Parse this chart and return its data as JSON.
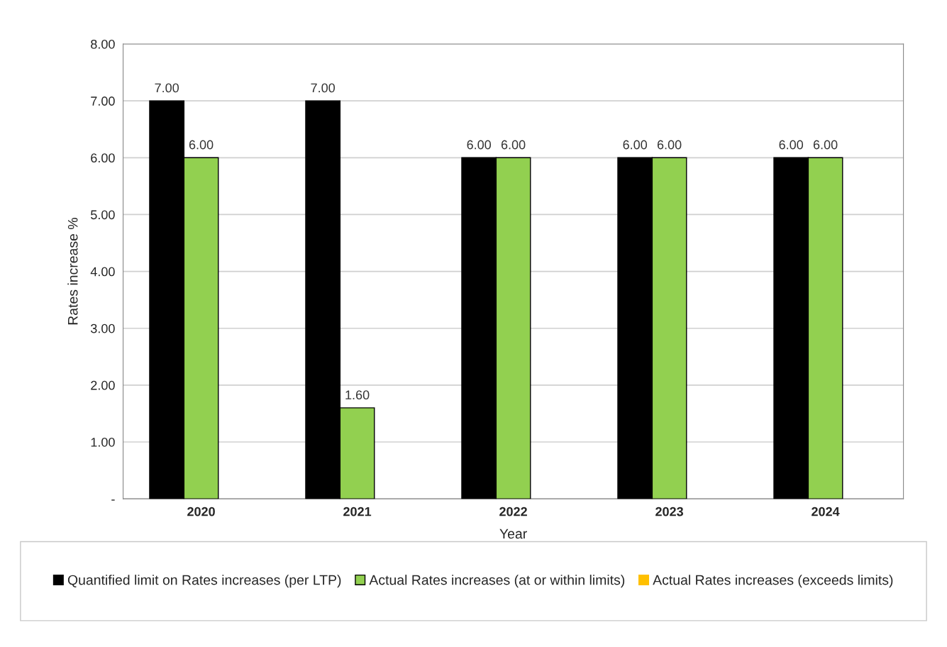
{
  "chart_data": {
    "type": "bar",
    "xlabel": "Year",
    "ylabel": "Rates increase %",
    "categories": [
      "2020",
      "2021",
      "2022",
      "2023",
      "2024"
    ],
    "series": [
      {
        "name": "Quantified limit on Rates increases (per LTP)",
        "color": "#000000",
        "values": [
          7,
          7,
          6,
          6,
          6
        ],
        "value_labels": [
          "7.00",
          "7.00",
          "6.00",
          "6.00",
          "6.00"
        ]
      },
      {
        "name": "Actual Rates increases (at or within limits)",
        "color": "#92d050",
        "values": [
          6,
          1.6,
          6,
          6,
          6
        ],
        "value_labels": [
          "6.00",
          "1.60",
          "6.00",
          "6.00",
          "6.00"
        ]
      },
      {
        "name": "Actual Rates increases (exceeds limits)",
        "color": "#ffc000",
        "values": [
          null,
          null,
          null,
          null,
          null
        ]
      }
    ],
    "ylim": [
      0,
      8
    ],
    "yticks": [
      {
        "value": 0,
        "label": "-"
      },
      {
        "value": 1,
        "label": "1.00"
      },
      {
        "value": 2,
        "label": "2.00"
      },
      {
        "value": 3,
        "label": "3.00"
      },
      {
        "value": 4,
        "label": "4.00"
      },
      {
        "value": 5,
        "label": "5.00"
      },
      {
        "value": 6,
        "label": "6.00"
      },
      {
        "value": 7,
        "label": "7.00"
      },
      {
        "value": 8,
        "label": "8.00"
      }
    ],
    "grid": "y",
    "legend": "bottom"
  }
}
